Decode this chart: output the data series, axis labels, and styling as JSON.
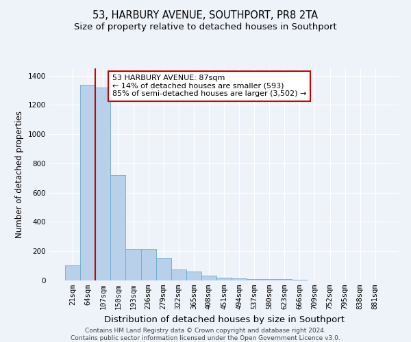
{
  "title": "53, HARBURY AVENUE, SOUTHPORT, PR8 2TA",
  "subtitle": "Size of property relative to detached houses in Southport",
  "xlabel": "Distribution of detached houses by size in Southport",
  "ylabel": "Number of detached properties",
  "categories": [
    "21sqm",
    "64sqm",
    "107sqm",
    "150sqm",
    "193sqm",
    "236sqm",
    "279sqm",
    "322sqm",
    "365sqm",
    "408sqm",
    "451sqm",
    "494sqm",
    "537sqm",
    "580sqm",
    "623sqm",
    "666sqm",
    "709sqm",
    "752sqm",
    "795sqm",
    "838sqm",
    "881sqm"
  ],
  "values": [
    105,
    1340,
    1320,
    720,
    215,
    215,
    155,
    75,
    60,
    35,
    20,
    13,
    10,
    8,
    10,
    3,
    2,
    0,
    0,
    0,
    2
  ],
  "bar_color": "#b8d0ea",
  "bar_edge_color": "#6aaad4",
  "vline_color": "#cc0000",
  "vline_x": 1.5,
  "annotation_text": "53 HARBURY AVENUE: 87sqm\n← 14% of detached houses are smaller (593)\n85% of semi-detached houses are larger (3,502) →",
  "annotation_box_facecolor": "#ffffff",
  "annotation_box_edgecolor": "#cc0000",
  "ylim": [
    0,
    1450
  ],
  "yticks": [
    0,
    200,
    400,
    600,
    800,
    1000,
    1200,
    1400
  ],
  "footnote1": "Contains HM Land Registry data © Crown copyright and database right 2024.",
  "footnote2": "Contains public sector information licensed under the Open Government Licence v3.0.",
  "title_fontsize": 10.5,
  "subtitle_fontsize": 9.5,
  "xlabel_fontsize": 9.5,
  "ylabel_fontsize": 8.5,
  "tick_fontsize": 7.5,
  "annotation_fontsize": 8,
  "footnote_fontsize": 6.5,
  "background_color": "#eef2f9"
}
